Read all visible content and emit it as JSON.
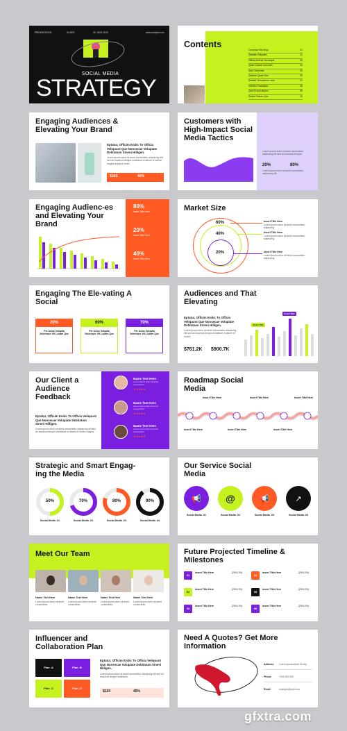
{
  "slide1": {
    "top_left": "PRESENTATION",
    "top_mid1": "SLIDES",
    "top_mid2": "05. JUNE 2025",
    "top_right": "www.example.com",
    "subtitle": "SOCIAL MEDIA",
    "title": "STRATEGY"
  },
  "slide2": {
    "title": "Contents",
    "items": [
      {
        "label": "Consequi Illis Moju",
        "num": "01"
      },
      {
        "label": "Dassitis Volupatis",
        "num": "02"
      },
      {
        "label": "Officia Molesti Voloreque",
        "num": "03"
      },
      {
        "label": "Quae Dolorib Iure Auth",
        "num": "04"
      },
      {
        "label": "Nem Dolendae",
        "num": "05"
      },
      {
        "label": "Quidem Quam Eos",
        "num": "06"
      },
      {
        "label": "Maritati Tecspilamis Latro",
        "num": "07"
      },
      {
        "label": "Interem Pacisident",
        "num": "08"
      },
      {
        "label": "Que Et Aut Ullipton",
        "num": "09"
      },
      {
        "label": "Vellect Paliom Que",
        "num": "10"
      }
    ]
  },
  "slide3": {
    "title": "Engaging Audiences & Elevating Your Brand",
    "lead": "Eptatur, Officim Enitic To Officia Veliquunt Que Nonsecae Volupiate Debitatum Sineni Hilligen.",
    "stat1": "$10S",
    "stat2": "40%"
  },
  "slide4": {
    "title": "Customers with High-Impact Social Media Tactics",
    "stat1": "20%",
    "stat2": "80%"
  },
  "slide5": {
    "title": "Engaging Audienc-es and Elevating Your Brand",
    "stat1": "80%",
    "stat2": "20%",
    "stat3": "40%",
    "label": "Insert Title Here"
  },
  "slide6": {
    "title": "Market Size",
    "rings": [
      "60%",
      "40%",
      "20%"
    ],
    "label": "Insert Title Here"
  },
  "slide7": {
    "title": "Engaging The Ele-vating A Social",
    "cards": [
      {
        "value": "20%",
        "text": "Per Acius Voluptia Voloreque Vili Ludam Que"
      },
      {
        "value": "60%",
        "text": "Per Acius Voluptia Voloreque Vili Ludam Que"
      },
      {
        "value": "70%",
        "text": "Per Acius Voluptia Voloreque Vili Ludam Que"
      }
    ]
  },
  "slide8": {
    "title": "Audiences and That Elevating",
    "lead": "Eptatur, Officim Enitic To Officia Veliquunt Que Nonsecae Volupiate Debitatum Sineni Hilligen.",
    "stat1": "$761.2K",
    "stat2": "$900.7K",
    "tag": "Insert Title"
  },
  "slide9": {
    "title": "Our Client a Audience Feedback",
    "lead": "Eptatur, Officim Enitic To Officia Veliquunt Que Nonsecae Volupiate Debitatum Sineni Hilligen.",
    "name": "Name Text Here",
    "stars": "★★★★★"
  },
  "slide10": {
    "title": "Roadmap Social Media",
    "label": "Insert Title Here"
  },
  "slide11": {
    "title": "Strategic and Smart Engag-ing the Media",
    "donuts": [
      {
        "value": "50%",
        "label": "Social Media -01"
      },
      {
        "value": "70%",
        "label": "Social Media -02"
      },
      {
        "value": "80%",
        "label": "Social Media -03"
      },
      {
        "value": "90%",
        "label": "Social Media -04"
      }
    ]
  },
  "slide12": {
    "title": "Our Service Social Media",
    "items": [
      {
        "label": "Social Media -01",
        "icon": "megaphone-icon"
      },
      {
        "label": "Social Media -02",
        "icon": "at-icon"
      },
      {
        "label": "Social Media -03",
        "icon": "megaphone-icon"
      },
      {
        "label": "Social Media -04",
        "icon": "rocket-icon"
      }
    ]
  },
  "slide13": {
    "title": "Meet Our Team",
    "name": "Name Text Here"
  },
  "slide14": {
    "title": "Future Projected Timeline & Milestones",
    "items": [
      {
        "num": "01",
        "label": "Insert Title Here",
        "date": "(20XX-XX)"
      },
      {
        "num": "02",
        "label": "Insert Title Here",
        "date": "(20XX-XX)"
      },
      {
        "num": "03",
        "label": "Insert Title Here",
        "date": "(20XX-XX)"
      },
      {
        "num": "04",
        "label": "Insert Title Here",
        "date": "(20XX-XX)"
      },
      {
        "num": "05",
        "label": "Insert Title Here",
        "date": "(20XX-XX)"
      },
      {
        "num": "06",
        "label": "Insert Title Here",
        "date": "(20XX-XX)"
      }
    ]
  },
  "slide15": {
    "title": "Influencer and Collaboration Plan",
    "lead": "Eptatur, Officim Enitic To Officia Veliquunt Que Nonsecae Volupiate Debitatum Sineni Hilligen.",
    "plans": [
      "Plan -A",
      "Plan -B",
      "Plan -C",
      "Plan -D"
    ],
    "stat1": "$120",
    "stat2": "45%"
  },
  "slide16": {
    "title": "Need A Quotes? Get More Information",
    "fields": [
      "Address",
      "Phone",
      "Email"
    ]
  },
  "watermark": "gfxtra.com",
  "colors": {
    "lime": "#c5f11e",
    "purple": "#7a1fe0",
    "orange": "#ff5a23",
    "black": "#111111"
  }
}
